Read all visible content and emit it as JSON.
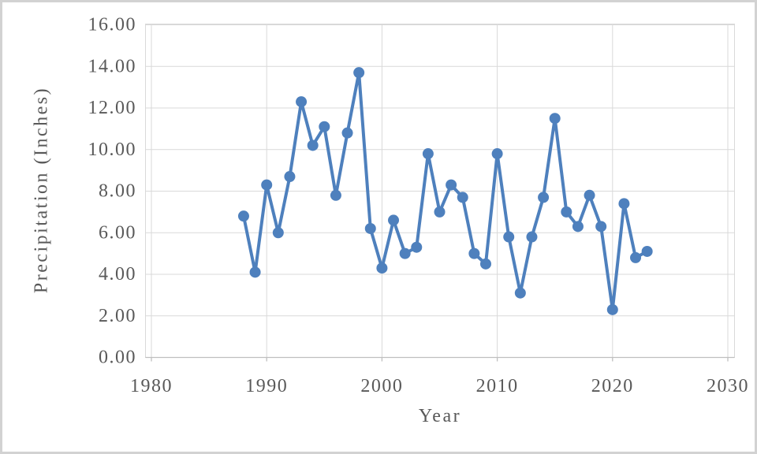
{
  "chart_data": {
    "type": "line",
    "title": "",
    "xlabel": "Year",
    "ylabel": "Precipitation (Inches)",
    "x": [
      1988,
      1989,
      1990,
      1991,
      1992,
      1993,
      1994,
      1995,
      1996,
      1997,
      1998,
      1999,
      2000,
      2001,
      2002,
      2003,
      2004,
      2005,
      2006,
      2007,
      2008,
      2009,
      2010,
      2011,
      2012,
      2013,
      2014,
      2015,
      2016,
      2017,
      2018,
      2019,
      2020,
      2021,
      2022,
      2023
    ],
    "values": [
      6.8,
      4.1,
      8.3,
      6.0,
      8.7,
      12.3,
      10.2,
      11.1,
      7.8,
      10.8,
      13.7,
      6.2,
      4.3,
      6.6,
      5.0,
      5.3,
      9.8,
      7.0,
      8.3,
      7.7,
      5.0,
      4.5,
      9.8,
      5.8,
      3.1,
      5.8,
      7.7,
      11.5,
      7.0,
      6.3,
      7.8,
      6.3,
      2.3,
      7.4,
      4.8,
      5.1
    ],
    "xlim": [
      1980,
      2030
    ],
    "ylim": [
      0,
      16
    ],
    "x_tick_values": [
      1980,
      1990,
      2000,
      2010,
      2020,
      2030
    ],
    "x_tick_labels": [
      "1980",
      "1990",
      "2000",
      "2010",
      "2020",
      "2030"
    ],
    "y_tick_values": [
      0,
      2,
      4,
      6,
      8,
      10,
      12,
      14,
      16
    ],
    "y_tick_labels": [
      "0.00",
      "2.00",
      "4.00",
      "6.00",
      "8.00",
      "10.00",
      "12.00",
      "14.00",
      "16.00"
    ],
    "grid": true,
    "legend": false,
    "marker": "circle",
    "colors": {
      "series": "#4e80bd",
      "text": "#595959",
      "gridline": "#d9d9d9",
      "axis_line": "#bfbfbf",
      "frame_border": "#d2d2d2",
      "background": "#ffffff"
    }
  }
}
